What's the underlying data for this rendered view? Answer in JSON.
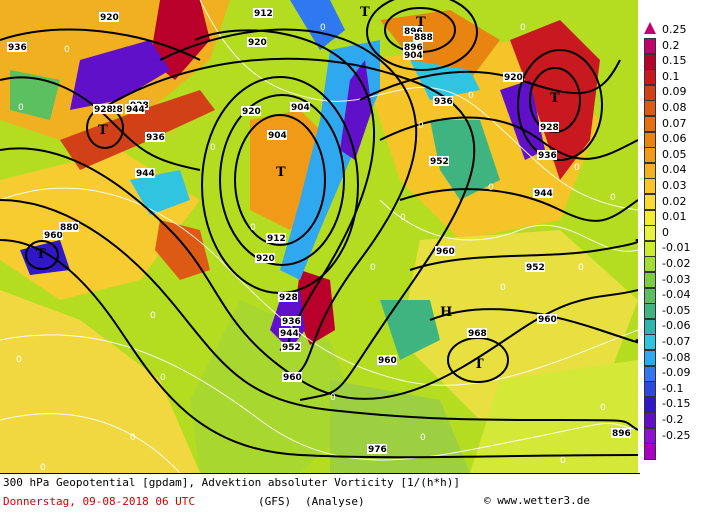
{
  "map": {
    "contour_labels": [
      "920",
      "936",
      "928",
      "928",
      "936",
      "944",
      "960",
      "912",
      "920",
      "904",
      "896",
      "888",
      "896",
      "904",
      "920",
      "928",
      "936",
      "944",
      "952",
      "960",
      "968",
      "976",
      "896",
      "904",
      "912",
      "920",
      "928",
      "936",
      "944",
      "952",
      "960",
      "960",
      "920",
      "936",
      "928",
      "944",
      "952",
      "960",
      "880"
    ],
    "pressure_systems": [
      "T",
      "T",
      "T",
      "T",
      "T",
      "T",
      "T",
      "H"
    ],
    "zero_labels": [
      "0",
      "0",
      "0",
      "0",
      "0",
      "0",
      "0",
      "0",
      "0",
      "0",
      "0",
      "0",
      "0",
      "0",
      "0",
      "0",
      "0",
      "0",
      "0",
      "0",
      "0",
      "0",
      "0",
      "0"
    ]
  },
  "scale": {
    "labels": [
      "0.25",
      "0.2",
      "0.15",
      "0.1",
      "0.09",
      "0.08",
      "0.07",
      "0.06",
      "0.05",
      "0.04",
      "0.03",
      "0.02",
      "0.01",
      "0",
      "-0.01",
      "-0.02",
      "-0.03",
      "-0.04",
      "-0.05",
      "-0.06",
      "-0.07",
      "-0.08",
      "-0.09",
      "-0.1",
      "-0.15",
      "-0.2",
      "-0.25"
    ],
    "colors": [
      "#c2006e",
      "#b8002a",
      "#c81820",
      "#d24018",
      "#dc5a14",
      "#e67010",
      "#ea8410",
      "#f09a18",
      "#f4b020",
      "#f8c628",
      "#f8dc30",
      "#f4ec30",
      "#e8f43c",
      "#ccec2c",
      "#a0dc34",
      "#7ccc44",
      "#5cc060",
      "#40b480",
      "#30b4b0",
      "#30c4e0",
      "#30a8f0",
      "#3078f0",
      "#2c48e0",
      "#3018c8",
      "#6010c8",
      "#9010d0",
      "#a800c0"
    ]
  },
  "footer": {
    "line1": "300 hPa Geopotential [gpdam], Advektion absoluter Vorticity [1/(h*h)]",
    "line2_date": "Donnerstag, 09-08-2018  06 UTC",
    "model": "(GFS)",
    "mode": "(Analyse)",
    "credit": "© www.wetter3.de"
  }
}
